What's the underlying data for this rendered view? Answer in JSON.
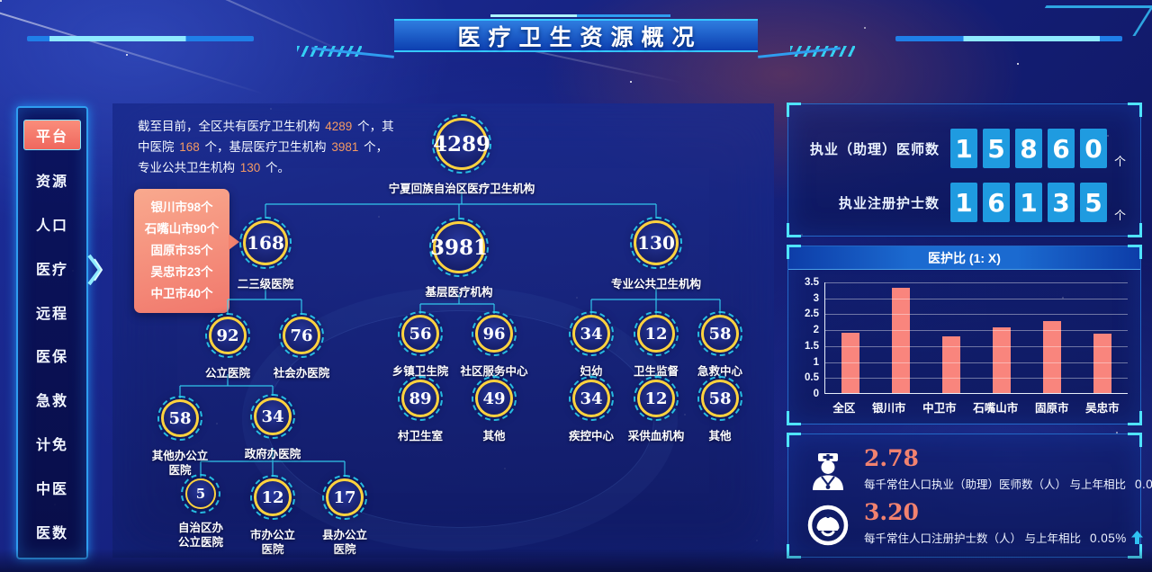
{
  "header": {
    "title": "医疗卫生资源概况"
  },
  "sidebar": {
    "items": [
      {
        "label": "平台",
        "active": true
      },
      {
        "label": "资源",
        "active": false
      },
      {
        "label": "人口",
        "active": false
      },
      {
        "label": "医疗",
        "active": false
      },
      {
        "label": "远程",
        "active": false
      },
      {
        "label": "医保",
        "active": false
      },
      {
        "label": "急救",
        "active": false
      },
      {
        "label": "计免",
        "active": false
      },
      {
        "label": "中医",
        "active": false
      },
      {
        "label": "医数",
        "active": false
      }
    ]
  },
  "summary": {
    "segments": [
      {
        "text": "截至目前，全区共有医疗卫生机构 "
      },
      {
        "text": "4289"
      },
      {
        "text": " 个，其中医院 "
      },
      {
        "text": "168"
      },
      {
        "text": " 个，基层医疗卫生机构 "
      },
      {
        "text": "3981"
      },
      {
        "text": " 个，专业公共卫生机构 "
      },
      {
        "text": "130"
      },
      {
        "text": " 个。"
      }
    ]
  },
  "tooltip": {
    "lines": [
      "银川市98个",
      "石嘴山市90个",
      "固原市35个",
      "吴忠市23个",
      "中卫市40个"
    ]
  },
  "org_tree": {
    "nodes": [
      {
        "value": "4289",
        "label": "宁夏回族自治区医疗卫生机构"
      },
      {
        "value": "168",
        "label": "二三级医院"
      },
      {
        "value": "3981",
        "label": "基层医疗机构"
      },
      {
        "value": "130",
        "label": "专业公共卫生机构"
      },
      {
        "value": "92",
        "label": "公立医院"
      },
      {
        "value": "76",
        "label": "社会办医院"
      },
      {
        "value": "56",
        "label": "乡镇卫生院"
      },
      {
        "value": "96",
        "label": "社区服务中心"
      },
      {
        "value": "34",
        "label": "妇幼"
      },
      {
        "value": "12",
        "label": "卫生监督"
      },
      {
        "value": "58",
        "label": "急救中心"
      },
      {
        "value": "58",
        "label": "其他办公立\n医院"
      },
      {
        "value": "34",
        "label": "政府办医院"
      },
      {
        "value": "89",
        "label": "村卫生室"
      },
      {
        "value": "49",
        "label": "其他"
      },
      {
        "value": "34",
        "label": "疾控中心"
      },
      {
        "value": "12",
        "label": "采供血机构"
      },
      {
        "value": "58",
        "label": "其他"
      },
      {
        "value": "5",
        "label": "自治区办\n公立医院"
      },
      {
        "value": "12",
        "label": "市办公立\n医院"
      },
      {
        "value": "17",
        "label": "县办公立\n医院"
      }
    ]
  },
  "stats_panel": {
    "rows": [
      {
        "label": "执业（助理）医师数",
        "digits": "15860",
        "unit": "个"
      },
      {
        "label": "执业注册护士数",
        "digits": "16135",
        "unit": "个"
      }
    ]
  },
  "chart_data": {
    "type": "bar",
    "title": "医护比 (1: X)",
    "categories": [
      "全区",
      "银川市",
      "中卫市",
      "石嘴山市",
      "固原市",
      "吴忠市"
    ],
    "values": [
      1.9,
      3.3,
      1.78,
      2.07,
      2.27,
      1.87
    ],
    "xlabel": "",
    "ylabel": "",
    "ylim": [
      0,
      3.5
    ],
    "ytick_step": 0.5,
    "grid": true,
    "legend": false,
    "bar_color": "#f9857d"
  },
  "kpi_panel": {
    "items": [
      {
        "icon": "doctor-icon",
        "value": "2.78",
        "label": "每千常住人口执业（助理）医师数（人） 与上年相比",
        "change": "0.05%",
        "trend": "up"
      },
      {
        "icon": "nurse-icon",
        "value": "3.20",
        "label": "每千常住人口注册护士数（人） 与上年相比",
        "change": "0.05%",
        "trend": "up"
      }
    ]
  },
  "colors": {
    "accent_cyan": "#2bd9f7",
    "ring_yellow": "#ffd23e",
    "salmon": "#f9857d",
    "digit_blue": "#1f9be0",
    "highlight_orange": "#f49a63",
    "panel_border_blue": "#2a82e6"
  }
}
